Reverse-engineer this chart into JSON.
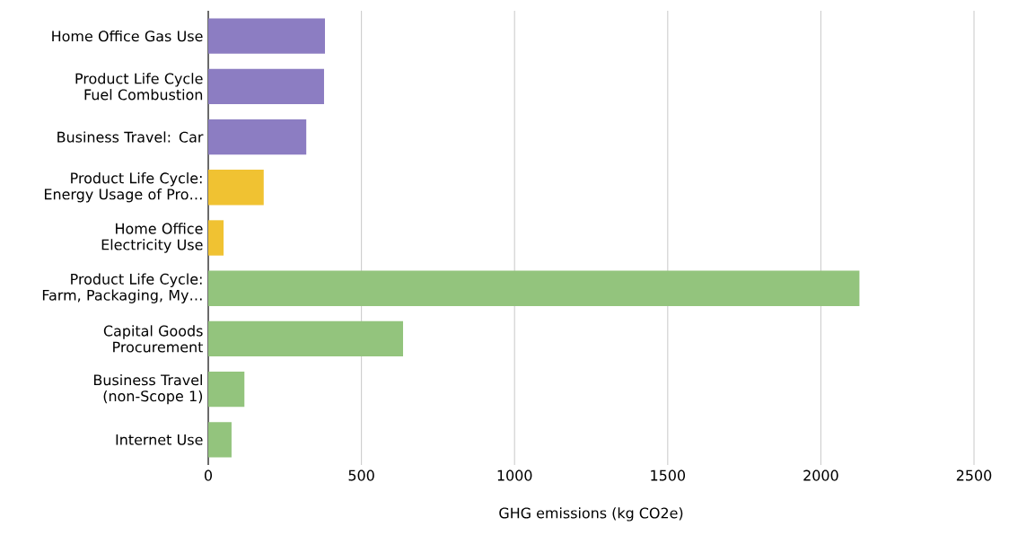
{
  "chart_data": {
    "type": "bar",
    "orientation": "horizontal",
    "xlabel": "GHG emissions (kg CO2e)",
    "categories": [
      "Home Office Gas Use",
      "Product Life Cycle Fuel Combustion",
      "Business Travel: Car",
      "Product Life Cycle: Energy Usage of Pro…",
      "Home Office Electricity Use",
      "Product Life Cycle: Farm, Packaging, My…",
      "Capital Goods Procurement",
      "Business Travel (non-Scope 1)",
      "Internet Use"
    ],
    "values": [
      381,
      378,
      320,
      181,
      50,
      2126,
      636,
      118,
      76
    ],
    "colors": [
      "#8c7dc2",
      "#8c7dc2",
      "#8c7dc2",
      "#f0c232",
      "#f0c232",
      "#93c47d",
      "#93c47d",
      "#93c47d",
      "#93c47d"
    ],
    "xlim": [
      0,
      2500
    ],
    "xticks": [
      0,
      500,
      1000,
      1500,
      2000,
      2500
    ],
    "grid": "x"
  }
}
